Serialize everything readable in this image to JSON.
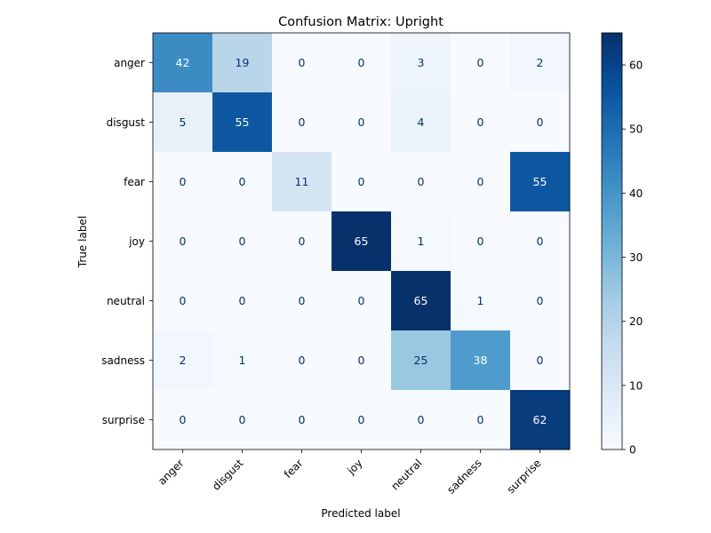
{
  "chart_data": {
    "type": "heatmap",
    "title": "Confusion Matrix: Upright",
    "xlabel": "Predicted label",
    "ylabel": "True label",
    "x_categories": [
      "anger",
      "disgust",
      "fear",
      "joy",
      "neutral",
      "sadness",
      "surprise"
    ],
    "y_categories": [
      "anger",
      "disgust",
      "fear",
      "joy",
      "neutral",
      "sadness",
      "surprise"
    ],
    "matrix": [
      [
        42,
        19,
        0,
        0,
        3,
        0,
        2
      ],
      [
        5,
        55,
        0,
        0,
        4,
        0,
        0
      ],
      [
        0,
        0,
        11,
        0,
        0,
        0,
        55
      ],
      [
        0,
        0,
        0,
        65,
        1,
        0,
        0
      ],
      [
        0,
        0,
        0,
        0,
        65,
        1,
        0
      ],
      [
        2,
        1,
        0,
        0,
        25,
        38,
        0
      ],
      [
        0,
        0,
        0,
        0,
        0,
        0,
        62
      ]
    ],
    "colorscale": "Blues",
    "colorbar": {
      "range": [
        0,
        65
      ],
      "ticks": [
        0,
        10,
        20,
        30,
        40,
        50,
        60
      ]
    }
  }
}
